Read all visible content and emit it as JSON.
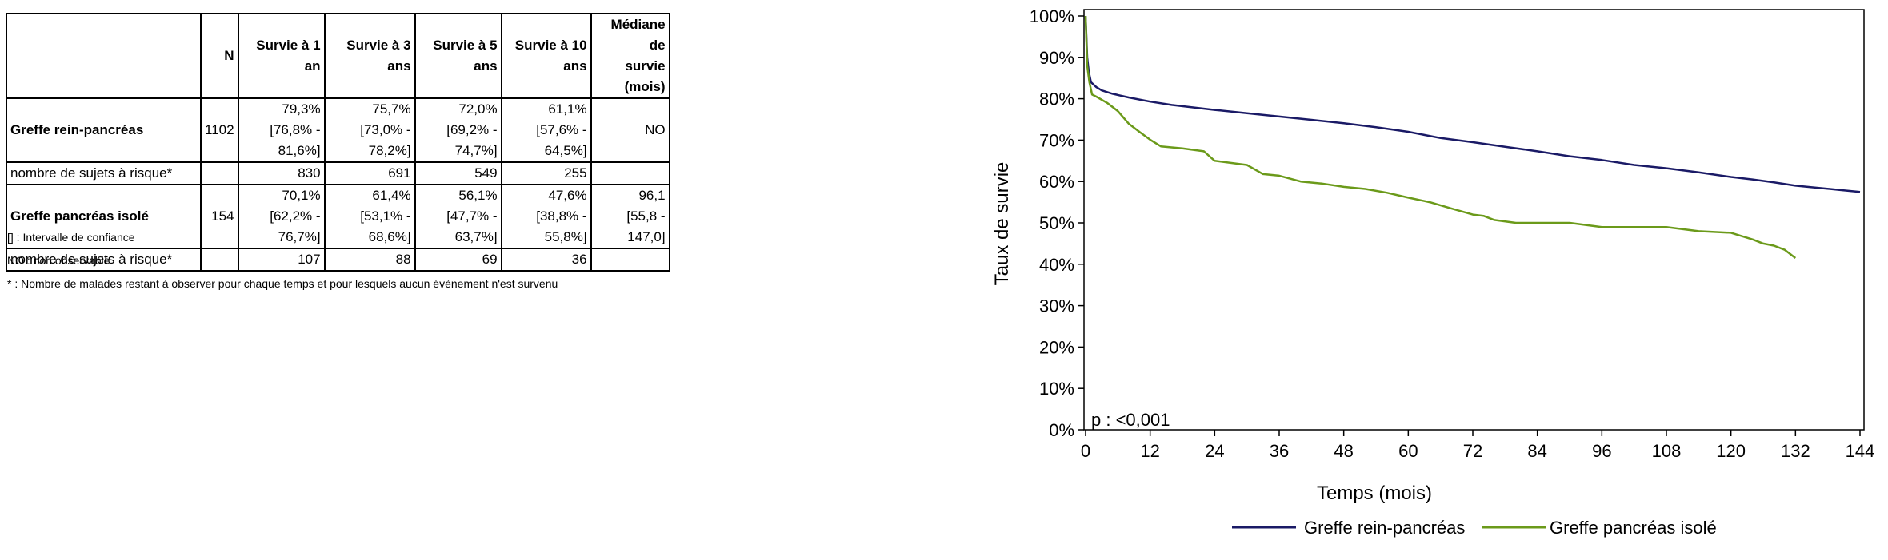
{
  "table": {
    "headers": [
      "",
      "N",
      "Survie à 1 an",
      "Survie à 3 ans",
      "Survie à 5 ans",
      "Survie à 10 ans",
      "Médiane de",
      "survie (mois)"
    ],
    "rows": [
      {
        "label": "Greffe rein-pancréas",
        "n": "1102",
        "s1": "79,3%",
        "s1ci": "[76,8% - 81,6%]",
        "s3": "75,7%",
        "s3ci": "[73,0% - 78,2%]",
        "s5": "72,0%",
        "s5ci": "[69,2% - 74,7%]",
        "s10": "61,1%",
        "s10ci": "[57,6% - 64,5%]",
        "med": "NO",
        "medci": ""
      },
      {
        "label": "nombre de sujets à risque*",
        "n": "",
        "s1": "830",
        "s3": "691",
        "s5": "549",
        "s10": "255",
        "med": ""
      },
      {
        "label": "Greffe pancréas isolé",
        "n": "154",
        "s1": "70,1%",
        "s1ci": "[62,2% - 76,7%]",
        "s3": "61,4%",
        "s3ci": "[53,1% - 68,6%]",
        "s5": "56,1%",
        "s5ci": "[47,7% - 63,7%]",
        "s10": "47,6%",
        "s10ci": "[38,8% - 55,8%]",
        "med": "96,1",
        "medci": "[55,8 - 147,0]"
      },
      {
        "label": "nombre de sujets à risque*",
        "n": "",
        "s1": "107",
        "s3": "88",
        "s5": "69",
        "s10": "36",
        "med": ""
      }
    ]
  },
  "notes": [
    "[] : Intervalle de confiance",
    "NO : non observable",
    "* : Nombre de malades restant à observer pour chaque temps et pour lesquels aucun évènement n'est survenu"
  ],
  "chart_data": {
    "type": "line",
    "xlabel": "Temps (mois)",
    "ylabel": "Taux de survie",
    "xlim": [
      0,
      144
    ],
    "ylim": [
      0,
      100
    ],
    "xticks": [
      "0",
      "12",
      "24",
      "36",
      "48",
      "60",
      "72",
      "84",
      "96",
      "108",
      "120",
      "132",
      "144"
    ],
    "yticks": [
      "0%",
      "10%",
      "20%",
      "30%",
      "40%",
      "50%",
      "60%",
      "70%",
      "80%",
      "90%",
      "100%"
    ],
    "annotation": "p : <0,001",
    "grid": false,
    "legend_position": "bottom",
    "series": [
      {
        "name": "Greffe rein-pancréas",
        "color": "#1a1a66",
        "x": [
          0,
          0.3,
          0.6,
          1,
          2,
          3,
          5,
          8,
          12,
          16,
          20,
          24,
          30,
          36,
          42,
          48,
          54,
          60,
          66,
          72,
          78,
          84,
          90,
          96,
          102,
          108,
          114,
          120,
          124,
          128,
          132,
          136,
          140,
          144
        ],
        "y": [
          100,
          90,
          86.5,
          84,
          82.8,
          82,
          81.2,
          80.3,
          79.3,
          78.5,
          77.9,
          77.3,
          76.5,
          75.7,
          74.9,
          74.1,
          73.1,
          72.0,
          70.5,
          69.5,
          68.4,
          67.3,
          66.1,
          65.2,
          64.0,
          63.2,
          62.2,
          61.1,
          60.5,
          59.8,
          59.0,
          58.5,
          58.0,
          57.5
        ]
      },
      {
        "name": "Greffe pancréas isolé",
        "color": "#6b9a1a",
        "x": [
          0,
          0.3,
          0.7,
          1.2,
          2,
          4,
          6,
          8,
          10,
          12,
          14,
          18,
          22,
          24,
          30,
          33,
          36,
          40,
          44,
          48,
          52,
          56,
          60,
          64,
          68,
          72,
          74,
          76,
          80,
          84,
          90,
          96,
          100,
          108,
          114,
          120,
          124,
          126,
          128,
          130,
          132
        ],
        "y": [
          100,
          88,
          84,
          81,
          80.5,
          79,
          77,
          74,
          72,
          70.1,
          68.5,
          68,
          67.3,
          65,
          64,
          61.8,
          61.4,
          60,
          59.5,
          58.7,
          58.2,
          57.3,
          56.1,
          55,
          53.5,
          52,
          51.7,
          50.7,
          50,
          50,
          50,
          49,
          49,
          49,
          48,
          47.6,
          46,
          45,
          44.5,
          43.5,
          41.5
        ]
      }
    ]
  }
}
